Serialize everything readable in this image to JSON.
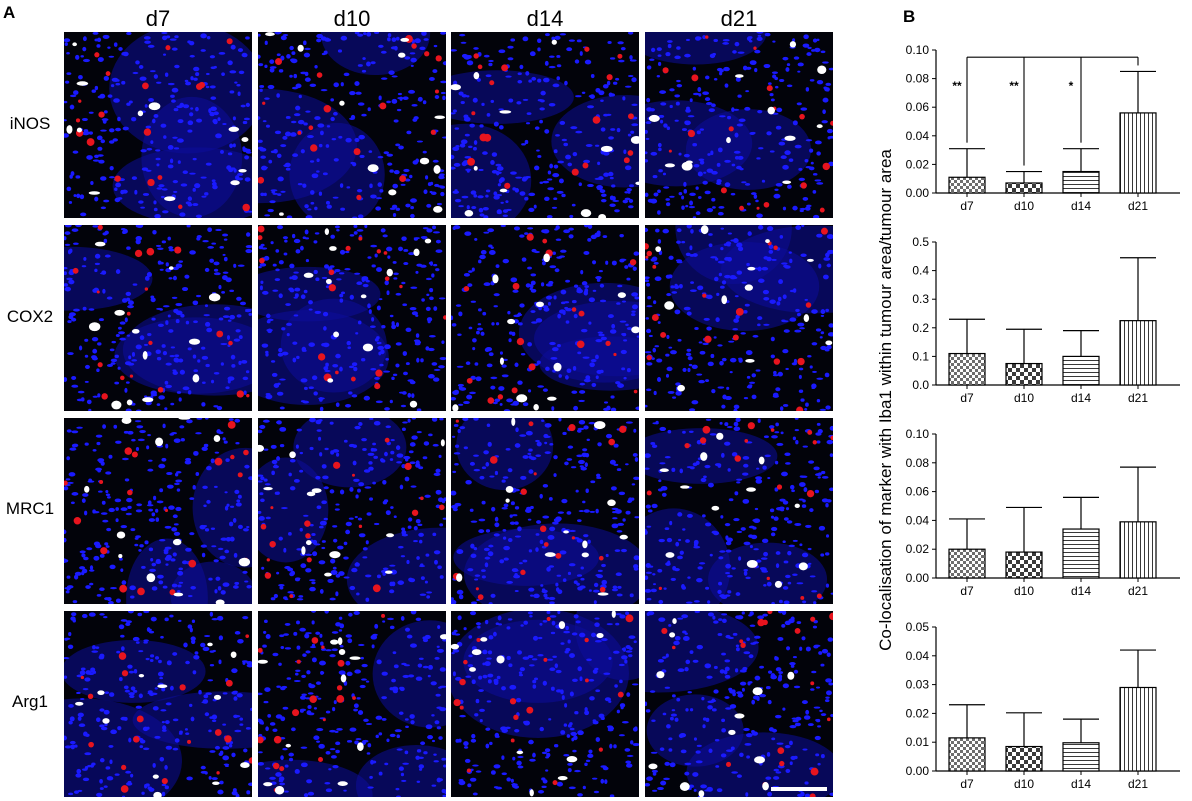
{
  "panel_a_label": "A",
  "panel_b_label": "B",
  "timepoints": [
    "d7",
    "d10",
    "d14",
    "d21"
  ],
  "markers": [
    "iNOS",
    "COX2",
    "MRC1",
    "Arg1"
  ],
  "colors": {
    "nuclei": "#1a1aff",
    "marker": "#e8141e",
    "iba1": "#ffffff",
    "background": "#02030a"
  },
  "y_axis_label": "Co-localisation of marker with Iba1 within tumour area/tumour area",
  "chart_data": [
    {
      "type": "bar",
      "marker": "iNOS",
      "categories": [
        "d7",
        "d10",
        "d14",
        "d21"
      ],
      "values": [
        0.011,
        0.007,
        0.015,
        0.056
      ],
      "error_upper": [
        0.031,
        0.015,
        0.031,
        0.085
      ],
      "ylim": [
        0,
        0.1
      ],
      "yticks": [
        "0.00",
        "0.02",
        "0.04",
        "0.06",
        "0.08",
        "0.10"
      ],
      "significance": [
        "**",
        "**",
        "*"
      ],
      "patterns": [
        "checker",
        "checker-fine",
        "horizontal",
        "vertical"
      ]
    },
    {
      "type": "bar",
      "marker": "COX2",
      "categories": [
        "d7",
        "d10",
        "d14",
        "d21"
      ],
      "values": [
        0.11,
        0.075,
        0.1,
        0.225
      ],
      "error_upper": [
        0.23,
        0.195,
        0.19,
        0.445
      ],
      "ylim": [
        0,
        0.5
      ],
      "yticks": [
        "0.0",
        "0.1",
        "0.2",
        "0.3",
        "0.4",
        "0.5"
      ],
      "patterns": [
        "checker",
        "checker-fine",
        "horizontal",
        "vertical"
      ]
    },
    {
      "type": "bar",
      "marker": "MRC1",
      "categories": [
        "d7",
        "d10",
        "d14",
        "d21"
      ],
      "values": [
        0.02,
        0.018,
        0.034,
        0.039
      ],
      "error_upper": [
        0.041,
        0.049,
        0.056,
        0.077
      ],
      "ylim": [
        0,
        0.1
      ],
      "yticks": [
        "0.00",
        "0.02",
        "0.04",
        "0.06",
        "0.08",
        "0.10"
      ],
      "patterns": [
        "checker",
        "checker-fine",
        "horizontal",
        "vertical"
      ]
    },
    {
      "type": "bar",
      "marker": "Arg1",
      "categories": [
        "d7",
        "d10",
        "d14",
        "d21"
      ],
      "values": [
        0.0115,
        0.0085,
        0.0098,
        0.029
      ],
      "error_upper": [
        0.023,
        0.0202,
        0.018,
        0.042
      ],
      "ylim": [
        0,
        0.05
      ],
      "yticks": [
        "0.00",
        "0.01",
        "0.02",
        "0.03",
        "0.04",
        "0.05"
      ],
      "patterns": [
        "checker",
        "checker-fine",
        "horizontal",
        "vertical"
      ]
    }
  ]
}
